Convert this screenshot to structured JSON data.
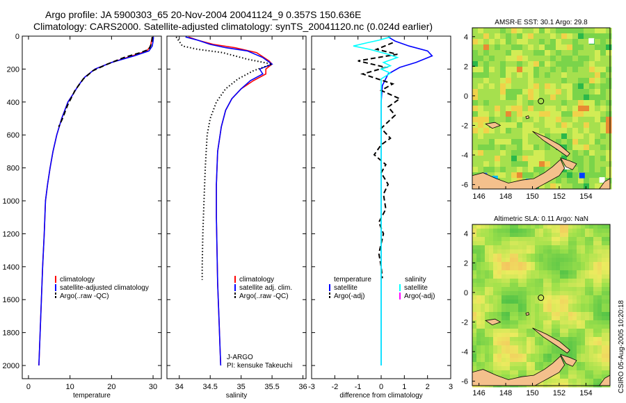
{
  "header": {
    "title_line1": "Argo profile: JA 5900303_65 20-Nov-2004 20041124_9 0.357S 150.636E",
    "title_line2": "Climatology: CARS2000. Satellite-adjusted climatology: synTS_20041120.nc (0.024d earlier)"
  },
  "footer": {
    "credit": "CSIRO 05-Aug-2005 10:20:18"
  },
  "colors": {
    "red": "#ff0000",
    "blue": "#0000ff",
    "black": "#000000",
    "cyan": "#00ffff",
    "magenta": "#ff00ff",
    "land": "#f4c08c"
  },
  "chart_data": [
    {
      "id": "temperature",
      "type": "line",
      "xlabel": "temperature",
      "ylabel": "",
      "xlim": [
        -1.5,
        32
      ],
      "ylim": [
        2080,
        0
      ],
      "xticks": [
        0,
        10,
        20,
        30
      ],
      "xtick_labels": [
        "0",
        "10",
        "20",
        "30"
      ],
      "yticks": [
        0,
        200,
        400,
        600,
        800,
        1000,
        1200,
        1400,
        1600,
        1800,
        2000
      ],
      "ytick_labels": [
        "0",
        "200",
        "400",
        "600",
        "800",
        "1000",
        "1200",
        "1400",
        "1600",
        "1800",
        "2000"
      ],
      "legend": [
        "climatology",
        "satellite-adjusted climatology",
        "Argo(..raw -QC)"
      ],
      "series": [
        {
          "name": "climatology",
          "color": "red",
          "dash": "solid",
          "points": [
            [
              29.8,
              5
            ],
            [
              29.6,
              30
            ],
            [
              29.4,
              60
            ],
            [
              28.5,
              90
            ],
            [
              25,
              120
            ],
            [
              20,
              160
            ],
            [
              16,
              200
            ],
            [
              13.5,
              250
            ],
            [
              12,
              300
            ],
            [
              10.8,
              350
            ],
            [
              9.5,
              400
            ],
            [
              8,
              500
            ],
            [
              6.8,
              600
            ],
            [
              5.9,
              700
            ],
            [
              5.2,
              800
            ],
            [
              4.6,
              900
            ],
            [
              4.1,
              1000
            ],
            [
              3.8,
              1200
            ],
            [
              3.4,
              1400
            ],
            [
              3.1,
              1600
            ],
            [
              2.8,
              1800
            ],
            [
              2.5,
              2000
            ]
          ]
        },
        {
          "name": "satellite-adjusted climatology",
          "color": "blue",
          "dash": "solid",
          "points": [
            [
              30.1,
              5
            ],
            [
              30,
              30
            ],
            [
              29.8,
              60
            ],
            [
              29,
              90
            ],
            [
              25.5,
              120
            ],
            [
              20,
              160
            ],
            [
              16,
              200
            ],
            [
              13.5,
              250
            ],
            [
              12,
              300
            ],
            [
              10.8,
              350
            ],
            [
              9.5,
              400
            ],
            [
              8,
              500
            ],
            [
              6.8,
              600
            ],
            [
              5.9,
              700
            ],
            [
              5.2,
              800
            ],
            [
              4.6,
              900
            ],
            [
              4.1,
              1000
            ],
            [
              3.8,
              1200
            ],
            [
              3.4,
              1400
            ],
            [
              3.1,
              1600
            ],
            [
              2.8,
              1800
            ],
            [
              2.5,
              2000
            ]
          ]
        },
        {
          "name": "Argo(..raw -QC)",
          "color": "black",
          "dash": "dashed",
          "points": [
            [
              29.8,
              5
            ],
            [
              29.7,
              40
            ],
            [
              29,
              80
            ],
            [
              27,
              100
            ],
            [
              23,
              130
            ],
            [
              19,
              170
            ],
            [
              15.5,
              210
            ],
            [
              13.2,
              260
            ],
            [
              11.2,
              330
            ],
            [
              9.4,
              420
            ],
            [
              8.2,
              500
            ],
            [
              7.3,
              550
            ]
          ]
        }
      ]
    },
    {
      "id": "salinity",
      "type": "line",
      "xlabel": "salinity",
      "ylabel": "",
      "xlim": [
        33.8,
        36.05
      ],
      "ylim": [
        2080,
        0
      ],
      "xticks": [
        34,
        34.5,
        35,
        35.5,
        36
      ],
      "xtick_labels": [
        "34",
        "34.5",
        "35",
        "35.5",
        "36"
      ],
      "legend": [
        "climatology",
        "satellite adj. clim.",
        "Argo(..raw -QC)"
      ],
      "annotation_lines": [
        "J-ARGO",
        "PI: kensuke Takeuchi"
      ],
      "series": [
        {
          "name": "climatology",
          "color": "red",
          "dash": "solid",
          "points": [
            [
              34.15,
              5
            ],
            [
              34.3,
              25
            ],
            [
              34.55,
              50
            ],
            [
              34.9,
              70
            ],
            [
              35.25,
              100
            ],
            [
              35.45,
              150
            ],
            [
              35.5,
              170
            ],
            [
              35.4,
              200
            ],
            [
              35.4,
              230
            ],
            [
              35.2,
              270
            ],
            [
              35.0,
              320
            ],
            [
              34.85,
              380
            ],
            [
              34.75,
              450
            ],
            [
              34.68,
              550
            ],
            [
              34.62,
              700
            ],
            [
              34.6,
              900
            ],
            [
              34.6,
              1100
            ],
            [
              34.61,
              1300
            ],
            [
              34.62,
              1500
            ],
            [
              34.64,
              1700
            ],
            [
              34.66,
              1900
            ],
            [
              34.67,
              2000
            ]
          ]
        },
        {
          "name": "satellite adj. clim.",
          "color": "blue",
          "dash": "solid",
          "points": [
            [
              34.1,
              5
            ],
            [
              34.3,
              25
            ],
            [
              34.5,
              50
            ],
            [
              34.75,
              70
            ],
            [
              35.1,
              90
            ],
            [
              35.35,
              130
            ],
            [
              35.5,
              170
            ],
            [
              35.3,
              200
            ],
            [
              35.35,
              230
            ],
            [
              35.15,
              270
            ],
            [
              35.0,
              320
            ],
            [
              34.85,
              380
            ],
            [
              34.75,
              450
            ],
            [
              34.68,
              550
            ],
            [
              34.62,
              700
            ],
            [
              34.6,
              900
            ],
            [
              34.6,
              1100
            ],
            [
              34.61,
              1300
            ],
            [
              34.62,
              1500
            ],
            [
              34.64,
              1700
            ],
            [
              34.66,
              1900
            ],
            [
              34.67,
              2000
            ]
          ]
        },
        {
          "name": "Argo(..raw -QC)",
          "color": "black",
          "dash": "dotted",
          "points": [
            [
              33.95,
              5
            ],
            [
              34.05,
              60
            ],
            [
              34.3,
              80
            ],
            [
              34.7,
              100
            ],
            [
              35.1,
              140
            ],
            [
              35.5,
              170
            ],
            [
              35.2,
              210
            ],
            [
              34.95,
              260
            ],
            [
              34.75,
              320
            ],
            [
              34.6,
              400
            ],
            [
              34.5,
              500
            ],
            [
              34.45,
              600
            ],
            [
              34.42,
              800
            ],
            [
              34.4,
              1000
            ],
            [
              34.38,
              1200
            ],
            [
              34.37,
              1400
            ],
            [
              34.37,
              1480
            ]
          ]
        }
      ]
    },
    {
      "id": "difference",
      "type": "line",
      "xlabel": "difference from climatology",
      "ylabel": "",
      "xlim": [
        -3,
        3
      ],
      "ylim": [
        2080,
        0
      ],
      "xticks": [
        -3,
        -2,
        -1,
        0,
        1,
        2,
        3
      ],
      "xtick_labels": [
        "-3",
        "-2",
        "-1",
        "0",
        "1",
        "2",
        "3"
      ],
      "legend_left_header": "temperature",
      "legend_left": [
        "satellite",
        "Argo(-adj)"
      ],
      "legend_right_header": "salinity",
      "legend_right": [
        "satellite",
        "Argo(-adj)"
      ],
      "series": [
        {
          "name": "temperature satellite",
          "color": "blue",
          "dash": "solid",
          "points": [
            [
              0.3,
              5
            ],
            [
              0.6,
              30
            ],
            [
              1.2,
              60
            ],
            [
              2.0,
              90
            ],
            [
              2.2,
              120
            ],
            [
              1.5,
              160
            ],
            [
              0.8,
              190
            ],
            [
              0.3,
              230
            ],
            [
              0.05,
              300
            ],
            [
              0,
              400
            ],
            [
              0,
              2000
            ]
          ]
        },
        {
          "name": "temperature Argo(-adj)",
          "color": "black",
          "dash": "dashed",
          "points": [
            [
              0.5,
              40
            ],
            [
              -0.2,
              80
            ],
            [
              0.7,
              110
            ],
            [
              -1.0,
              150
            ],
            [
              0.2,
              190
            ],
            [
              -0.8,
              230
            ],
            [
              0.5,
              290
            ],
            [
              0.0,
              330
            ],
            [
              0.8,
              380
            ],
            [
              0.3,
              430
            ],
            [
              0.6,
              480
            ],
            [
              0.3,
              520
            ],
            [
              0.0,
              560
            ],
            [
              0.4,
              620
            ],
            [
              0.0,
              660
            ],
            [
              -0.3,
              720
            ],
            [
              0.2,
              780
            ],
            [
              0.0,
              830
            ],
            [
              0.3,
              900
            ],
            [
              0.1,
              960
            ],
            [
              0.2,
              1050
            ],
            [
              -0.1,
              1130
            ],
            [
              0.1,
              1200
            ],
            [
              0.0,
              1260
            ],
            [
              -0.1,
              1320
            ],
            [
              0.0,
              1400
            ],
            [
              0.05,
              1470
            ]
          ]
        },
        {
          "name": "salinity satellite",
          "color": "cyan",
          "dash": "solid",
          "points": [
            [
              0.4,
              5
            ],
            [
              -0.1,
              25
            ],
            [
              -0.6,
              40
            ],
            [
              -1.2,
              60
            ],
            [
              -0.5,
              80
            ],
            [
              0.3,
              110
            ],
            [
              0.7,
              130
            ],
            [
              0.1,
              160
            ],
            [
              0.4,
              180
            ],
            [
              0,
              200
            ],
            [
              0.4,
              225
            ],
            [
              0,
              260
            ],
            [
              0,
              2000
            ]
          ]
        },
        {
          "name": "salinity Argo(-adj)",
          "color": "magenta",
          "dash": "solid",
          "points": []
        }
      ]
    },
    {
      "id": "sst_map",
      "type": "heatmap",
      "title": "AMSR-E SST: 30.1 Argo: 29.8",
      "xlim": [
        145.5,
        155.8
      ],
      "ylim": [
        -6.3,
        4.6
      ],
      "xticks": [
        146,
        148,
        150,
        152,
        154
      ],
      "xtick_labels": [
        "146",
        "148",
        "150",
        "152",
        "154"
      ],
      "yticks": [
        4,
        2,
        0,
        -2,
        -4,
        -6
      ],
      "ytick_labels": [
        "4",
        "2",
        "0",
        "-2",
        "-4",
        "-6"
      ],
      "float_position": [
        150.636,
        -0.357
      ]
    },
    {
      "id": "sla_map",
      "type": "heatmap",
      "title": "Altimetric SLA: 0.11 Argo: NaN",
      "xlim": [
        145.5,
        155.8
      ],
      "ylim": [
        -6.3,
        4.6
      ],
      "xticks": [
        146,
        148,
        150,
        152,
        154
      ],
      "xtick_labels": [
        "146",
        "148",
        "150",
        "152",
        "154"
      ],
      "yticks": [
        4,
        2,
        0,
        -2,
        -4,
        -6
      ],
      "ytick_labels": [
        "4",
        "2",
        "0",
        "-2",
        "-4",
        "-6"
      ],
      "float_position": [
        150.636,
        -0.357
      ]
    }
  ]
}
